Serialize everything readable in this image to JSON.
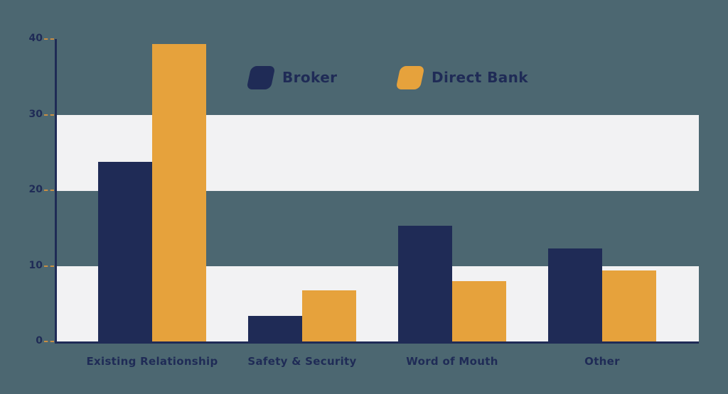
{
  "chart_data": {
    "type": "bar",
    "title": "",
    "xlabel": "",
    "ylabel": "",
    "categories": [
      "Existing Relationship",
      "Safety & Security",
      "Word of Mouth",
      "Other"
    ],
    "series": [
      {
        "name": "Broker",
        "color": "#1F2B56",
        "values": [
          23.8,
          3.4,
          15.3,
          12.3
        ]
      },
      {
        "name": "Direct Bank",
        "color": "#E6A23C",
        "values": [
          39.3,
          6.8,
          8.0,
          9.4
        ]
      }
    ],
    "ylim": [
      0,
      40
    ],
    "yticks": [
      0,
      10,
      20,
      30,
      40
    ],
    "grid": "alternating horizontal background bands",
    "bands": [
      [
        0,
        10
      ],
      [
        20,
        30
      ]
    ],
    "legend_position": "top-center",
    "colors": {
      "background": "#4C6771",
      "band": "#F2F2F3",
      "axis": "#1F2B56",
      "tick_dash": "#C98E44",
      "label_text": "#1F2B56"
    }
  }
}
